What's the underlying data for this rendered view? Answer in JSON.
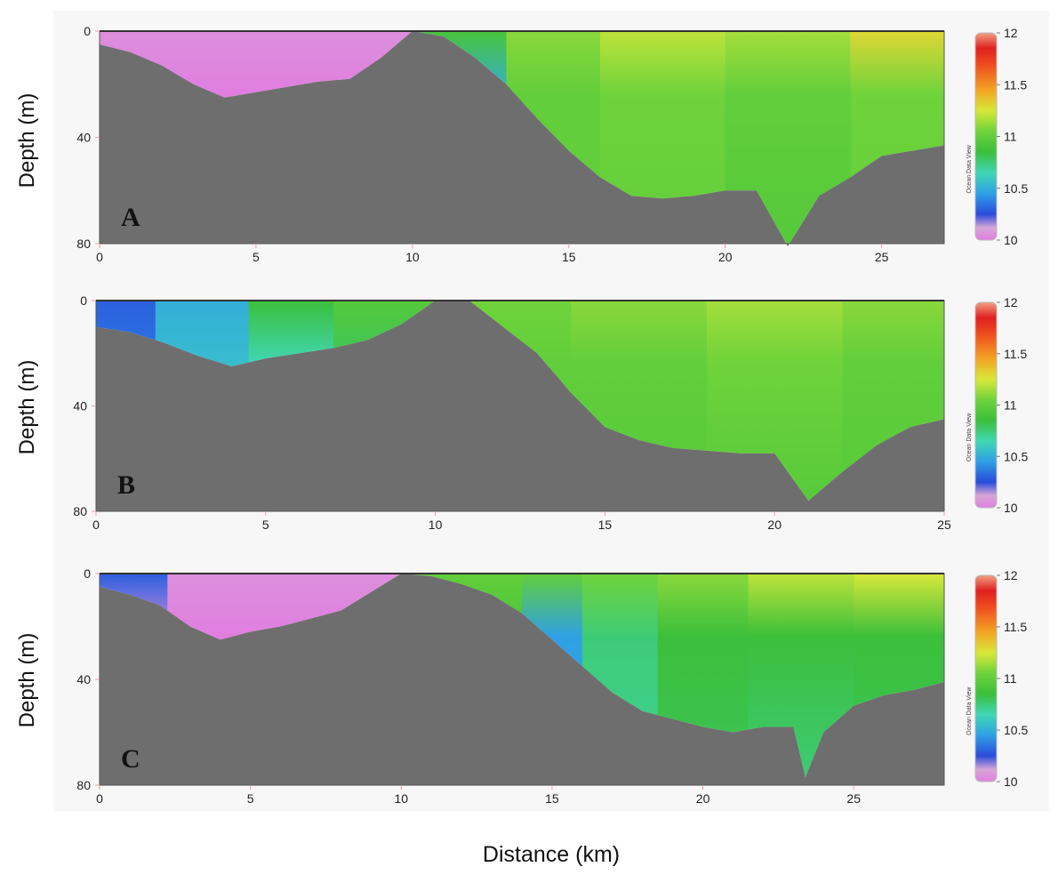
{
  "figure": {
    "x_axis_label": "Distance (km)",
    "y_axis_label": "Depth (m)",
    "colorbar_watermark": "Ocean Data View"
  },
  "colors": {
    "bathymetry": "#6e6e6e",
    "no_data": "#f1f1f1",
    "outer_background": "#f7f7f7"
  },
  "colorscale": {
    "min": 10,
    "max": 12,
    "ticks": [
      10,
      10.5,
      11,
      11.5,
      12
    ],
    "stops": [
      {
        "v": 10.0,
        "c": "#e07ee0"
      },
      {
        "v": 10.12,
        "c": "#d7a6d7"
      },
      {
        "v": 10.25,
        "c": "#2a4bdb"
      },
      {
        "v": 10.45,
        "c": "#2fa0e6"
      },
      {
        "v": 10.65,
        "c": "#41d7b4"
      },
      {
        "v": 10.85,
        "c": "#3bbf3b"
      },
      {
        "v": 11.05,
        "c": "#6fd33b"
      },
      {
        "v": 11.25,
        "c": "#d8e83a"
      },
      {
        "v": 11.45,
        "c": "#f4a323"
      },
      {
        "v": 11.7,
        "c": "#ee4a1e"
      },
      {
        "v": 11.85,
        "c": "#e02020"
      },
      {
        "v": 12.0,
        "c": "#f0a080"
      }
    ]
  },
  "chart_data": [
    {
      "type": "heatmap",
      "panel_label": "A",
      "xlim": [
        0,
        27
      ],
      "ylim": [
        0,
        80
      ],
      "xticks": [
        0,
        5,
        10,
        15,
        20,
        25
      ],
      "yticks": [
        0,
        40,
        80
      ],
      "bathymetry_km_m": [
        [
          0,
          5
        ],
        [
          1,
          8
        ],
        [
          2,
          13
        ],
        [
          3,
          20
        ],
        [
          4,
          25
        ],
        [
          5,
          23
        ],
        [
          6,
          21
        ],
        [
          7,
          19
        ],
        [
          8,
          18
        ],
        [
          9,
          10
        ],
        [
          10,
          0
        ],
        [
          11,
          2
        ],
        [
          12,
          10
        ],
        [
          13,
          20
        ],
        [
          14,
          33
        ],
        [
          15,
          45
        ],
        [
          16,
          55
        ],
        [
          17,
          62
        ],
        [
          18,
          63
        ],
        [
          19,
          62
        ],
        [
          20,
          60
        ],
        [
          21,
          60
        ],
        [
          22,
          81
        ],
        [
          23,
          62
        ],
        [
          24,
          55
        ],
        [
          25,
          47
        ],
        [
          26,
          45
        ],
        [
          27,
          43
        ]
      ],
      "water_columns": [
        {
          "x": 1,
          "values": [
            10.05,
            10.0,
            10.0
          ]
        },
        {
          "x": 4,
          "values": [
            10.05,
            10.0,
            10.0
          ]
        },
        {
          "x": 8,
          "values": [
            10.05,
            10.0,
            10.0
          ]
        },
        {
          "x": 12,
          "values": [
            10.9,
            10.5,
            10.8
          ]
        },
        {
          "x": 14,
          "values": [
            11.1,
            11.0,
            11.0
          ]
        },
        {
          "x": 18,
          "values": [
            11.2,
            11.05,
            11.0
          ]
        },
        {
          "x": 22,
          "values": [
            11.15,
            11.0,
            10.95
          ]
        },
        {
          "x": 26,
          "values": [
            11.3,
            11.05,
            11.0
          ]
        }
      ]
    },
    {
      "type": "heatmap",
      "panel_label": "B",
      "xlim": [
        0,
        25
      ],
      "ylim": [
        0,
        80
      ],
      "xticks": [
        0,
        5,
        10,
        15,
        20,
        25
      ],
      "yticks": [
        0,
        40,
        80
      ],
      "bathymetry_km_m": [
        [
          0,
          10
        ],
        [
          1,
          12
        ],
        [
          2,
          16
        ],
        [
          3,
          21
        ],
        [
          4,
          25
        ],
        [
          5,
          22
        ],
        [
          6,
          20
        ],
        [
          7,
          18
        ],
        [
          8,
          15
        ],
        [
          9,
          9
        ],
        [
          10,
          0
        ],
        [
          11,
          0
        ],
        [
          12,
          10
        ],
        [
          13,
          20
        ],
        [
          14,
          35
        ],
        [
          15,
          48
        ],
        [
          16,
          53
        ],
        [
          17,
          56
        ],
        [
          18,
          57
        ],
        [
          19,
          58
        ],
        [
          20,
          58
        ],
        [
          21,
          76
        ],
        [
          22,
          65
        ],
        [
          23,
          55
        ],
        [
          24,
          48
        ],
        [
          25,
          45
        ]
      ],
      "water_columns": [
        {
          "x": 0.5,
          "values": [
            10.3,
            10.35,
            10.4
          ]
        },
        {
          "x": 3,
          "values": [
            10.5,
            10.55,
            10.55
          ]
        },
        {
          "x": 6,
          "values": [
            10.85,
            10.65,
            10.6
          ]
        },
        {
          "x": 8,
          "values": [
            10.95,
            10.8,
            10.7
          ]
        },
        {
          "x": 12,
          "values": [
            11.05,
            11.0,
            10.95
          ]
        },
        {
          "x": 16,
          "values": [
            11.1,
            11.0,
            10.95
          ]
        },
        {
          "x": 20,
          "values": [
            11.15,
            11.05,
            10.95
          ]
        },
        {
          "x": 24,
          "values": [
            11.1,
            11.0,
            10.95
          ]
        }
      ]
    },
    {
      "type": "heatmap",
      "panel_label": "C",
      "xlim": [
        0,
        28
      ],
      "ylim": [
        0,
        80
      ],
      "xticks": [
        0,
        5,
        10,
        15,
        20,
        25
      ],
      "yticks": [
        0,
        40,
        80
      ],
      "bathymetry_km_m": [
        [
          0,
          5
        ],
        [
          1,
          8
        ],
        [
          2,
          12
        ],
        [
          3,
          20
        ],
        [
          4,
          25
        ],
        [
          5,
          22
        ],
        [
          6,
          20
        ],
        [
          7,
          17
        ],
        [
          8,
          14
        ],
        [
          9,
          7
        ],
        [
          10,
          0
        ],
        [
          11,
          1
        ],
        [
          12,
          4
        ],
        [
          13,
          8
        ],
        [
          14,
          15
        ],
        [
          15,
          25
        ],
        [
          16,
          35
        ],
        [
          17,
          45
        ],
        [
          18,
          52
        ],
        [
          19,
          55
        ],
        [
          20,
          58
        ],
        [
          21,
          60
        ],
        [
          22,
          58
        ],
        [
          23,
          58
        ],
        [
          23.4,
          77
        ],
        [
          24,
          60
        ],
        [
          25,
          50
        ],
        [
          26,
          46
        ],
        [
          27,
          44
        ],
        [
          28,
          41
        ]
      ],
      "water_columns": [
        {
          "x": 0.5,
          "values": [
            10.3,
            10.05,
            10.0
          ]
        },
        {
          "x": 4,
          "values": [
            10.05,
            10.0,
            10.0
          ]
        },
        {
          "x": 8,
          "values": [
            10.05,
            10.0,
            10.0
          ]
        },
        {
          "x": 13,
          "values": [
            11.0,
            10.9,
            10.85
          ]
        },
        {
          "x": 15,
          "values": [
            11.0,
            10.45,
            10.5
          ]
        },
        {
          "x": 17,
          "values": [
            11.05,
            10.75,
            10.7
          ]
        },
        {
          "x": 20,
          "values": [
            11.1,
            10.85,
            10.8
          ]
        },
        {
          "x": 23,
          "values": [
            11.2,
            10.85,
            10.75
          ]
        },
        {
          "x": 27,
          "values": [
            11.25,
            10.85,
            10.8
          ]
        }
      ]
    }
  ]
}
